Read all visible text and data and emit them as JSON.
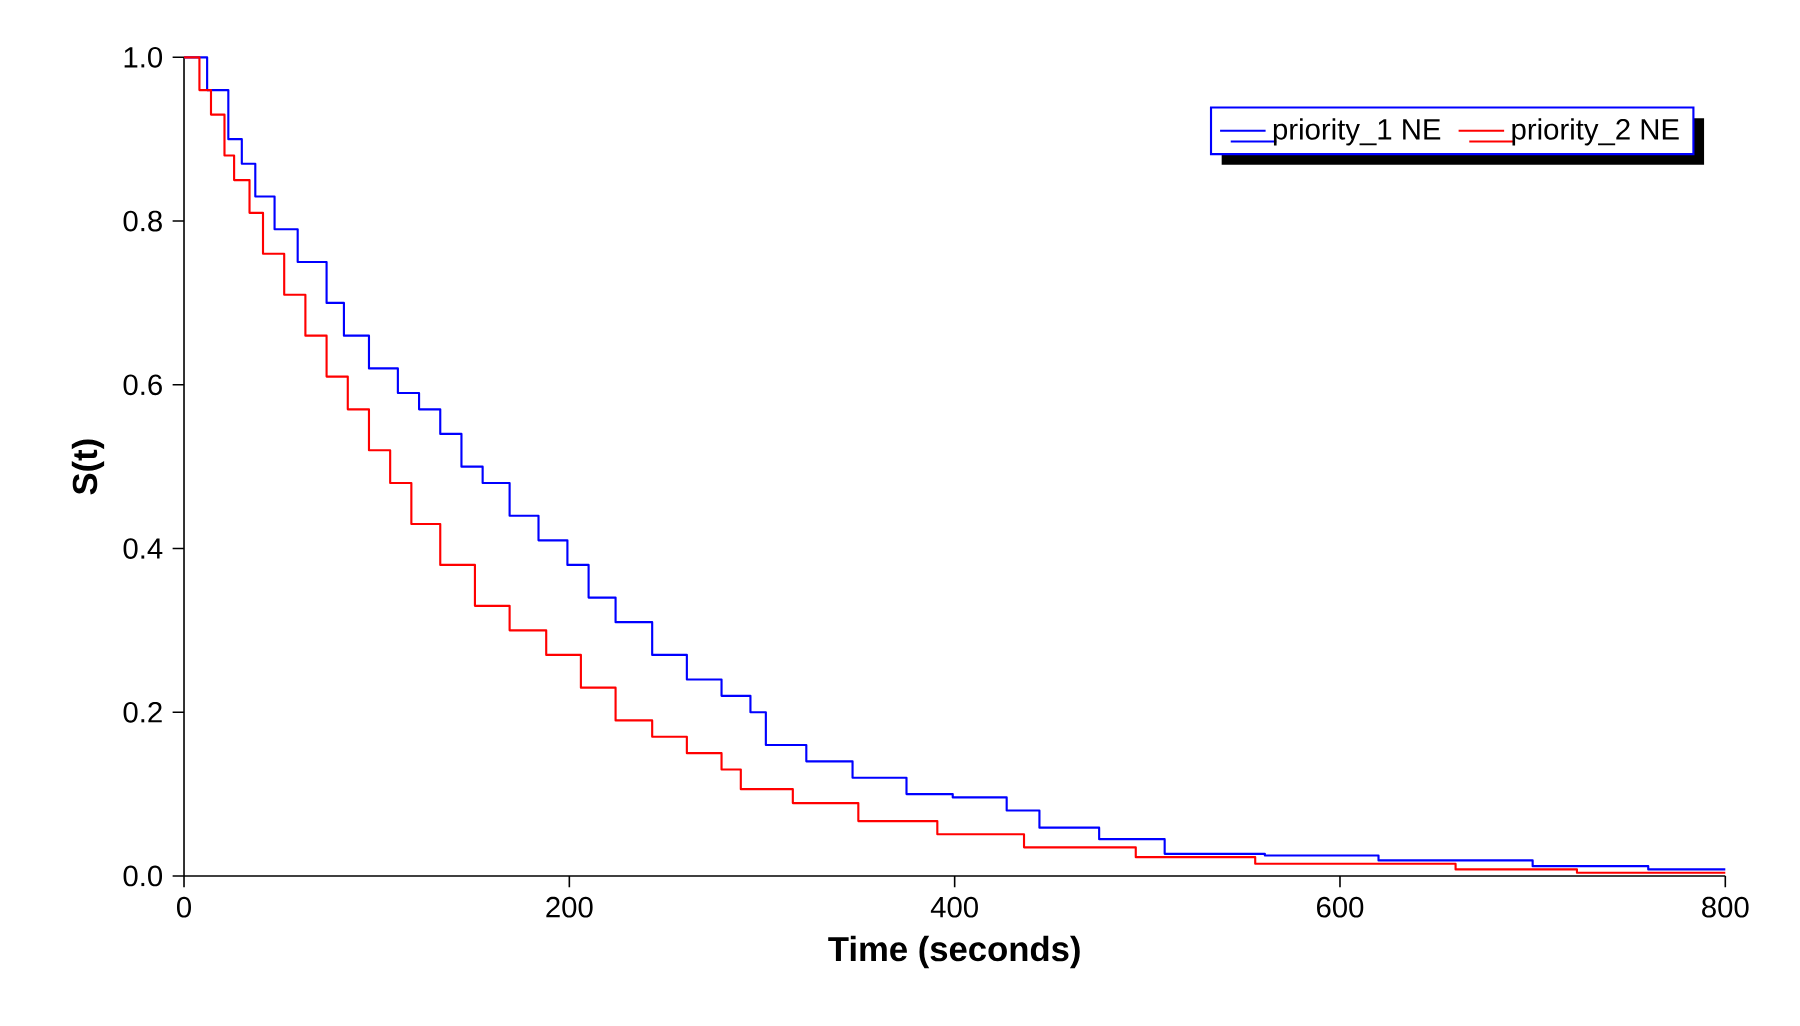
{
  "chart_data": {
    "type": "step",
    "xlabel": "Time (seconds)",
    "ylabel": "S(t)",
    "xlim": [
      0,
      800
    ],
    "xticks": [
      0,
      200,
      400,
      600,
      800
    ],
    "ylim": [
      0,
      1
    ],
    "yticks": [
      {
        "value": 0,
        "label": "0.0"
      },
      {
        "value": 0.2,
        "label": "0.2"
      },
      {
        "value": 0.4,
        "label": "0.4"
      },
      {
        "value": 0.6,
        "label": "0.6"
      },
      {
        "value": 0.8,
        "label": "0.8"
      },
      {
        "value": 1,
        "label": "1.0"
      }
    ],
    "grid": false,
    "legend": "top right",
    "series": [
      {
        "name": "priority_1 NE",
        "color": "#0000ff",
        "x": [
          0,
          12,
          23,
          30,
          37,
          47,
          59,
          74,
          83,
          96,
          111,
          122,
          133,
          144,
          155,
          169,
          184,
          199,
          210,
          224,
          243,
          261,
          279,
          294,
          302,
          323,
          347,
          375,
          399,
          427,
          444,
          475,
          509,
          561,
          620,
          700,
          760,
          800
        ],
        "values": [
          1.0,
          0.96,
          0.9,
          0.87,
          0.83,
          0.79,
          0.75,
          0.7,
          0.66,
          0.62,
          0.59,
          0.57,
          0.54,
          0.5,
          0.48,
          0.44,
          0.41,
          0.38,
          0.34,
          0.31,
          0.27,
          0.24,
          0.22,
          0.2,
          0.16,
          0.14,
          0.12,
          0.1,
          0.096,
          0.08,
          0.059,
          0.045,
          0.027,
          0.025,
          0.019,
          0.012,
          0.008,
          0.008
        ]
      },
      {
        "name": "priority_2 NE",
        "color": "#ff0000",
        "x": [
          0,
          8,
          14,
          21,
          26,
          34,
          41,
          52,
          63,
          74,
          85,
          96,
          107,
          118,
          133,
          151,
          169,
          188,
          206,
          224,
          243,
          261,
          279,
          289,
          316,
          350,
          391,
          436,
          494,
          556,
          660,
          723,
          800
        ],
        "values": [
          1.0,
          0.96,
          0.93,
          0.88,
          0.85,
          0.81,
          0.76,
          0.71,
          0.66,
          0.61,
          0.57,
          0.52,
          0.48,
          0.43,
          0.38,
          0.33,
          0.3,
          0.27,
          0.23,
          0.19,
          0.17,
          0.15,
          0.13,
          0.106,
          0.089,
          0.067,
          0.051,
          0.035,
          0.023,
          0.015,
          0.008,
          0.004,
          0.004
        ]
      }
    ]
  }
}
